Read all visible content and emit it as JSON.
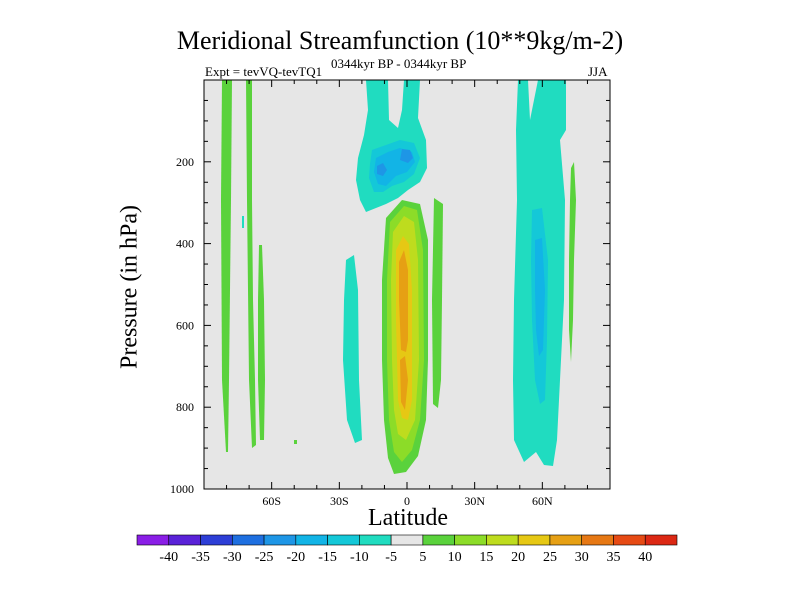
{
  "chart_data": {
    "type": "heatmap",
    "title": "Meridional Streamfunction (10**9kg/m-2)",
    "subtitle_left": "Expt = tevVQ-tevTQ1",
    "subtitle_center": "0344kyr BP - 0344kyr BP",
    "subtitle_right": "JJA",
    "xlabel": "Latitude",
    "ylabel": "Pressure (in hPa)",
    "x_ticks": [
      {
        "value": -60,
        "label": "60S"
      },
      {
        "value": -30,
        "label": "30S"
      },
      {
        "value": 0,
        "label": "0"
      },
      {
        "value": 30,
        "label": "30N"
      },
      {
        "value": 60,
        "label": "60N"
      }
    ],
    "y_ticks": [
      200,
      400,
      600,
      800,
      1000
    ],
    "xlim": [
      -90,
      90
    ],
    "ylim": [
      1000,
      0
    ],
    "grid": false,
    "colorbar": {
      "labels": [
        "-40",
        "-35",
        "-30",
        "-25",
        "-20",
        "-15",
        "-10",
        "-5",
        "5",
        "10",
        "15",
        "20",
        "25",
        "30",
        "35",
        "40"
      ],
      "colors": [
        "#8a1ee6",
        "#5a22d8",
        "#2d3ed6",
        "#1e6fe0",
        "#1e96e6",
        "#12b4e6",
        "#14c8d8",
        "#20dcc0",
        "#e6e6e6",
        "#5ad23c",
        "#8cdc28",
        "#bedc1e",
        "#e6c814",
        "#e6a014",
        "#e67814",
        "#e64a14",
        "#dc2814"
      ]
    },
    "features": [
      {
        "name": "tropical positive cell",
        "lat_range": [
          -10,
          10
        ],
        "p_range": [
          300,
          950
        ],
        "peak_value": 20
      },
      {
        "name": "tropical upper negative cell",
        "lat_range": [
          -20,
          10
        ],
        "p_range": [
          0,
          330
        ],
        "peak_value": -20
      },
      {
        "name": "subtropical negative cell north",
        "lat_range": [
          50,
          70
        ],
        "p_range": [
          0,
          940
        ],
        "peak_value": -10
      },
      {
        "name": "high latitude positive bands south",
        "lat_range": [
          -84,
          -64
        ],
        "p_range": [
          0,
          900
        ],
        "peak_value": 5
      }
    ]
  }
}
